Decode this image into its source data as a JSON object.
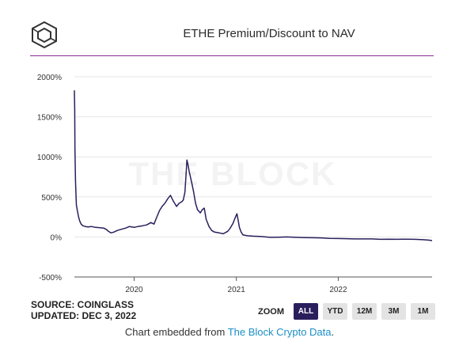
{
  "header": {
    "title": "ETHE Premium/Discount to NAV"
  },
  "watermark": "THE BLOCK",
  "footer": {
    "source": "SOURCE: COINGLASS",
    "updated": "UPDATED: DEC 3, 2022",
    "embed_prefix": "Chart embedded from ",
    "embed_link": "The Block Crypto Data",
    "embed_suffix": "."
  },
  "zoom": {
    "label": "ZOOM",
    "buttons": [
      "ALL",
      "YTD",
      "12M",
      "3M",
      "1M"
    ],
    "active": "ALL"
  },
  "colors": {
    "line": "#2a1f5c",
    "accent": "#8a2c8f",
    "grid": "#e6e6e6",
    "link": "#1c8fc7"
  },
  "chart_data": {
    "type": "line",
    "title": "ETHE Premium/Discount to NAV",
    "xlabel": "",
    "ylabel": "",
    "x_ticks": [
      "2020",
      "2021",
      "2022"
    ],
    "y_ticks": [
      "2000%",
      "1500%",
      "1000%",
      "500%",
      "0%",
      "-500%"
    ],
    "ylim": [
      -500,
      2000
    ],
    "grid": true,
    "series": [
      {
        "values": [
          [
            "2019-06-01",
            1830
          ],
          [
            "2019-06-02",
            1600
          ],
          [
            "2019-06-03",
            1100
          ],
          [
            "2019-06-05",
            700
          ],
          [
            "2019-06-08",
            400
          ],
          [
            "2019-06-12",
            320
          ],
          [
            "2019-06-16",
            250
          ],
          [
            "2019-06-20",
            200
          ],
          [
            "2019-06-25",
            160
          ],
          [
            "2019-07-01",
            140
          ],
          [
            "2019-07-10",
            130
          ],
          [
            "2019-07-20",
            125
          ],
          [
            "2019-08-01",
            130
          ],
          [
            "2019-08-15",
            120
          ],
          [
            "2019-09-01",
            115
          ],
          [
            "2019-09-15",
            110
          ],
          [
            "2019-09-25",
            90
          ],
          [
            "2019-10-01",
            70
          ],
          [
            "2019-10-10",
            50
          ],
          [
            "2019-10-20",
            60
          ],
          [
            "2019-11-01",
            80
          ],
          [
            "2019-11-15",
            95
          ],
          [
            "2019-12-01",
            110
          ],
          [
            "2019-12-15",
            130
          ],
          [
            "2020-01-01",
            120
          ],
          [
            "2020-01-15",
            130
          ],
          [
            "2020-02-01",
            140
          ],
          [
            "2020-02-15",
            150
          ],
          [
            "2020-03-01",
            180
          ],
          [
            "2020-03-12",
            160
          ],
          [
            "2020-03-20",
            230
          ],
          [
            "2020-04-01",
            330
          ],
          [
            "2020-04-10",
            380
          ],
          [
            "2020-04-20",
            420
          ],
          [
            "2020-05-01",
            480
          ],
          [
            "2020-05-10",
            520
          ],
          [
            "2020-05-20",
            450
          ],
          [
            "2020-06-01",
            380
          ],
          [
            "2020-06-10",
            420
          ],
          [
            "2020-06-20",
            440
          ],
          [
            "2020-06-25",
            460
          ],
          [
            "2020-07-01",
            560
          ],
          [
            "2020-07-05",
            780
          ],
          [
            "2020-07-08",
            960
          ],
          [
            "2020-07-12",
            900
          ],
          [
            "2020-07-16",
            820
          ],
          [
            "2020-07-20",
            760
          ],
          [
            "2020-07-25",
            680
          ],
          [
            "2020-08-01",
            560
          ],
          [
            "2020-08-08",
            420
          ],
          [
            "2020-08-15",
            340
          ],
          [
            "2020-08-25",
            300
          ],
          [
            "2020-09-01",
            340
          ],
          [
            "2020-09-08",
            360
          ],
          [
            "2020-09-15",
            220
          ],
          [
            "2020-09-25",
            130
          ],
          [
            "2020-10-05",
            80
          ],
          [
            "2020-10-15",
            60
          ],
          [
            "2020-11-01",
            50
          ],
          [
            "2020-11-15",
            40
          ],
          [
            "2020-12-01",
            70
          ],
          [
            "2020-12-10",
            110
          ],
          [
            "2020-12-20",
            170
          ],
          [
            "2020-12-28",
            240
          ],
          [
            "2021-01-03",
            290
          ],
          [
            "2021-01-08",
            200
          ],
          [
            "2021-01-12",
            120
          ],
          [
            "2021-01-18",
            60
          ],
          [
            "2021-01-25",
            25
          ],
          [
            "2021-02-10",
            15
          ],
          [
            "2021-03-01",
            10
          ],
          [
            "2021-04-01",
            5
          ],
          [
            "2021-05-01",
            -5
          ],
          [
            "2021-06-01",
            -3
          ],
          [
            "2021-07-01",
            0
          ],
          [
            "2021-08-01",
            -5
          ],
          [
            "2021-09-01",
            -8
          ],
          [
            "2021-10-01",
            -10
          ],
          [
            "2021-11-01",
            -12
          ],
          [
            "2021-12-01",
            -18
          ],
          [
            "2022-01-01",
            -20
          ],
          [
            "2022-02-01",
            -22
          ],
          [
            "2022-03-01",
            -25
          ],
          [
            "2022-04-01",
            -25
          ],
          [
            "2022-05-01",
            -25
          ],
          [
            "2022-06-01",
            -30
          ],
          [
            "2022-07-01",
            -28
          ],
          [
            "2022-08-01",
            -30
          ],
          [
            "2022-09-01",
            -28
          ],
          [
            "2022-10-01",
            -30
          ],
          [
            "2022-11-01",
            -35
          ],
          [
            "2022-11-20",
            -40
          ],
          [
            "2022-12-03",
            -45
          ]
        ]
      }
    ]
  }
}
